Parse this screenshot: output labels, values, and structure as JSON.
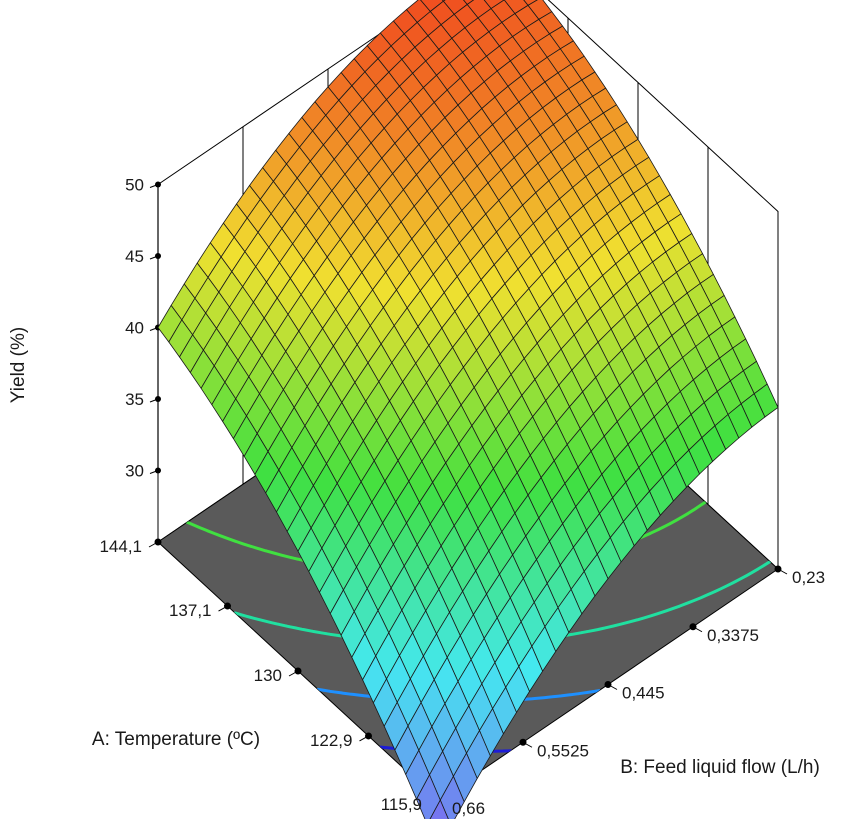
{
  "chart_data": {
    "type": "surface",
    "zlabel": "Yield (%)",
    "xlabel": "A: Temperature (ºC)",
    "ylabel": "B: Feed liquid flow (L/h)",
    "x_ticks": [
      "115,9",
      "122,9",
      "130",
      "137,1",
      "144,1"
    ],
    "x_values": [
      115.9,
      122.9,
      130,
      137.1,
      144.1
    ],
    "y_ticks": [
      "0,66",
      "0,5525",
      "0,445",
      "0,3375",
      "0,23"
    ],
    "y_values": [
      0.66,
      0.5525,
      0.445,
      0.3375,
      0.23
    ],
    "z_ticks": [
      "30",
      "35",
      "40",
      "45",
      "50"
    ],
    "z_values": [
      30,
      35,
      40,
      45,
      50
    ],
    "xlim": [
      115.9,
      144.1
    ],
    "ylim": [
      0.23,
      0.66
    ],
    "zlim": [
      25,
      50
    ],
    "grid": true,
    "surface_corners": [
      {
        "x": 115.9,
        "y": 0.66,
        "z": 21.5
      },
      {
        "x": 144.1,
        "y": 0.66,
        "z": 40.0
      },
      {
        "x": 115.9,
        "y": 0.23,
        "z": 36.3
      },
      {
        "x": 144.1,
        "y": 0.23,
        "z": 50.5
      }
    ],
    "surface_samples": [
      {
        "x": 130,
        "y": 0.445,
        "z": 42.5
      },
      {
        "x": 144.1,
        "y": 0.445,
        "z": 48.5
      },
      {
        "x": 115.9,
        "y": 0.445,
        "z": 31.0
      },
      {
        "x": 130,
        "y": 0.66,
        "z": 33.0
      },
      {
        "x": 130,
        "y": 0.23,
        "z": 46.0
      }
    ],
    "contour_colors": [
      "#1c1cd8",
      "#1e90ff",
      "#20e0a0",
      "#40e040",
      "#e0e020"
    ],
    "colormap": [
      "#7b6cf0",
      "#44e8f0",
      "#40e040",
      "#f0e030",
      "#f05020"
    ]
  }
}
